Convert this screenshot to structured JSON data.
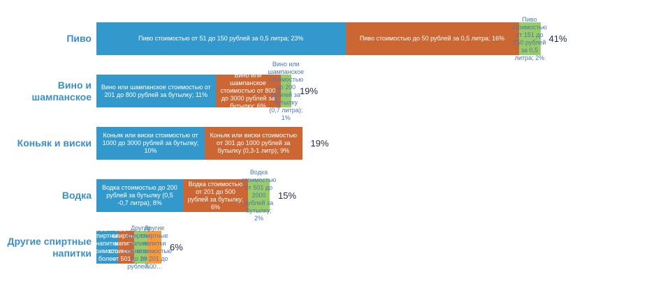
{
  "chart_data": {
    "type": "bar",
    "orientation": "horizontal",
    "stacked": true,
    "colors": [
      "#3399cc",
      "#cc6633",
      "#99cc66",
      "#ff9933"
    ],
    "categories": [
      {
        "label_lines": [
          "Пиво"
        ],
        "total": "41%",
        "segments": [
          {
            "label": "Пиво  стоимостью от 51 до 150 рублей за 0,5 литра;  23%",
            "value": 23
          },
          {
            "label": "Пиво стоимостью до 50 рублей за 0,5 литра; 16%",
            "value": 16
          },
          {
            "label": "Пиво стоимостью от 151 до 250 рублей за 0,5 литра;  2%",
            "value": 2
          }
        ]
      },
      {
        "label_lines": [
          "Вино и",
          "шампанское"
        ],
        "total": "19%",
        "segments": [
          {
            "label": "Вино или шампанское стоимостью от 201 до 800 рублей за бутылку; 11%",
            "value": 11
          },
          {
            "label": "Вино или шампанское стоимостью от 800 до 3000 рублей за бутылку; 6%",
            "value": 6
          },
          {
            "label": "Вино или  шампанское стоимостью до 200 рублей за бутылку (0,7 литра);  1%",
            "value": 1
          }
        ]
      },
      {
        "label_lines": [
          "Коньяк и виски"
        ],
        "total": "19%",
        "segments": [
          {
            "label": "Коньяк  или виски стоимостью от  1000  до 3000 рублей  за бутылку; 10%",
            "value": 10
          },
          {
            "label": "Коньяк или  виски стоимостью от 301  до 1000 рублей за бутылку (0,3-1 литр);  9%",
            "value": 9
          }
        ]
      },
      {
        "label_lines": [
          "Водка"
        ],
        "total": "15%",
        "segments": [
          {
            "label": "Водка стоимостью до 200 рублей  за бутылку (0,5 -0,7 литра);  8%",
            "value": 8
          },
          {
            "label": "Водка стоимостью от 201 до 500  рублей за бутылку; 6%",
            "value": 6
          },
          {
            "label": "Водка стоимостью от 501 до 2000  рублей за бутылку; 2%",
            "value": 2
          }
        ]
      },
      {
        "label_lines": [
          "Другие  спиртные",
          "напитки"
        ],
        "total": "6%",
        "segments": [
          {
            "label": "Другие спиртные напитки стоимостью более 2000…",
            "value": 2
          },
          {
            "label": "Другие спиртные напитки стоимостью от 501 до 2000…",
            "value": 1.5
          },
          {
            "label": "Другие спиртные напитки стоимостью до 200 рублей…",
            "value": 1.2
          },
          {
            "label": "Другие спиртные напитки стоимостью от 201 до 500…",
            "value": 1.3
          }
        ]
      }
    ]
  }
}
